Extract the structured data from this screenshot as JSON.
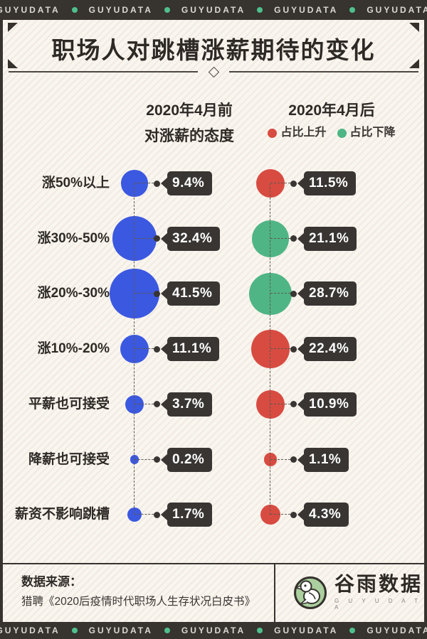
{
  "banner": {
    "items": [
      "GUYUDATA",
      "GUYUDATA",
      "GUYUDATA",
      "GUYUDATA",
      "GUYUDATA"
    ]
  },
  "title": "职场人对跳槽涨薪期待的变化",
  "columns": {
    "before_line1": "2020年4月前",
    "before_line2": "对涨薪的态度",
    "after_title": "2020年4月后",
    "legend": [
      {
        "label": "占比上升",
        "color": "#d84b41"
      },
      {
        "label": "占比下降",
        "color": "#4fb585"
      }
    ]
  },
  "chart_data": {
    "type": "bubble",
    "categories": [
      "涨50%以上",
      "涨30%-50%",
      "涨20%-30%",
      "涨10%-20%",
      "平薪也可接受",
      "降薪也可接受",
      "薪资不影响跳槽"
    ],
    "series": [
      {
        "name": "2020年4月前",
        "values": [
          9.4,
          32.4,
          41.5,
          11.1,
          3.7,
          0.2,
          1.7
        ],
        "color": "#3b58e0"
      },
      {
        "name": "2020年4月后",
        "values": [
          11.5,
          21.1,
          28.7,
          22.4,
          10.9,
          1.1,
          4.3
        ],
        "point_colors": [
          "#d84b41",
          "#4fb585",
          "#4fb585",
          "#d84b41",
          "#d84b41",
          "#d84b41",
          "#d84b41"
        ]
      }
    ],
    "value_suffix": "%",
    "legend_position": "top-right",
    "grid": "dashed-guides",
    "size_encoding": "area ~ value"
  },
  "footer": {
    "source_label": "数据来源：",
    "source_text": "猎聘《2020后疫情时代职场人生存状况白皮书》",
    "logo_name": "谷雨数据",
    "logo_sub": "G U Y U D A T A"
  },
  "colors": {
    "bar_dark": "#37332f",
    "dot_green": "#4fc08d",
    "blue": "#3b58e0",
    "red": "#d84b41",
    "green": "#4fb585",
    "logo_green": "#abcf9e",
    "cream": "#f9f5ef"
  }
}
